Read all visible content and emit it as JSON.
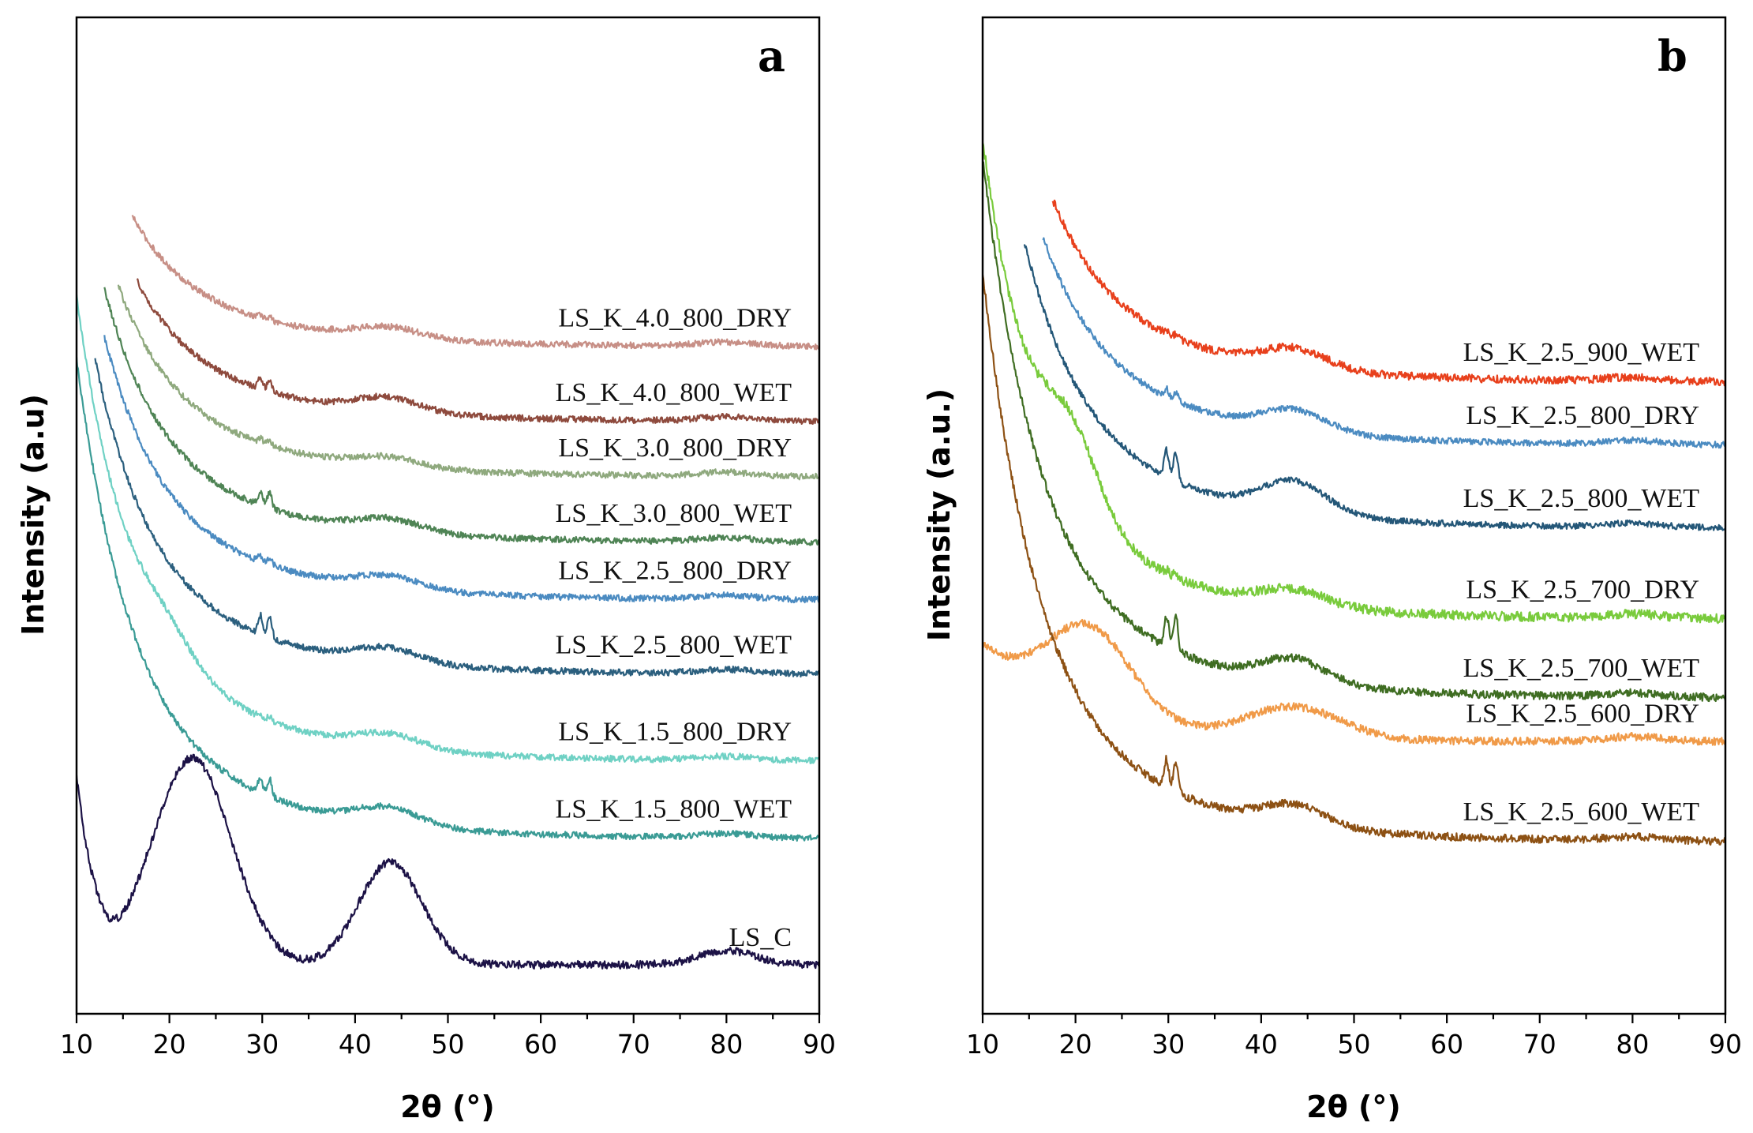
{
  "chart_data": [
    {
      "type": "line",
      "panel": "a",
      "xlabel": "2θ (°)",
      "ylabel": "Intensity (a.u)",
      "xlim": [
        10,
        90
      ],
      "xticks": [
        "10",
        "20",
        "30",
        "40",
        "50",
        "60",
        "70",
        "80",
        "90"
      ],
      "yticks": "none",
      "grid": false,
      "series": [
        {
          "name": "LS_K_4.0_800_DRY",
          "color": "#c78f86",
          "offset": 845,
          "scale": 1.0,
          "start_x": 16,
          "noise": 4,
          "bump22": 0,
          "hump43": 14,
          "sharp30": 4
        },
        {
          "name": "LS_K_4.0_800_WET",
          "color": "#8e4a3d",
          "offset": 750,
          "scale": 1.15,
          "start_x": 16.5,
          "noise": 4,
          "bump22": 0,
          "hump43": 18,
          "sharp30": 14
        },
        {
          "name": "LS_K_3.0_800_DRY",
          "color": "#8fa97e",
          "offset": 680,
          "scale": 1.2,
          "start_x": 14.5,
          "noise": 4,
          "bump22": 0,
          "hump43": 12,
          "sharp30": 6
        },
        {
          "name": "LS_K_3.0_800_WET",
          "color": "#4f8455",
          "offset": 597,
          "scale": 1.3,
          "start_x": 13,
          "noise": 4,
          "bump22": 0,
          "hump43": 16,
          "sharp30": 18
        },
        {
          "name": "LS_K_2.5_800_DRY",
          "color": "#4b8bc1",
          "offset": 524,
          "scale": 1.35,
          "start_x": 13,
          "noise": 4,
          "bump22": 0,
          "hump43": 16,
          "sharp30": 8
        },
        {
          "name": "LS_K_2.5_800_WET",
          "color": "#2b5f7e",
          "offset": 430,
          "scale": 1.4,
          "start_x": 12,
          "noise": 4,
          "bump22": 0,
          "hump43": 18,
          "sharp30": 24
        },
        {
          "name": "LS_K_1.5_800_DRY",
          "color": "#6fd1c4",
          "offset": 320,
          "scale": 1.55,
          "start_x": 10,
          "noise": 4,
          "bump22": 30,
          "hump43": 18,
          "sharp30": 4
        },
        {
          "name": "LS_K_1.5_800_WET",
          "color": "#3a9b95",
          "offset": 222,
          "scale": 1.6,
          "start_x": 10,
          "noise": 4,
          "bump22": 0,
          "hump43": 22,
          "sharp30": 20
        },
        {
          "name": "LS_C",
          "color": "#1c1246",
          "offset": 20,
          "scale": 0,
          "start_x": 10,
          "noise": 5,
          "profile": "carbon"
        }
      ]
    },
    {
      "type": "line",
      "panel": "b",
      "xlabel": "2θ (°)",
      "ylabel": "Intensity (a.u.)",
      "xlim": [
        10,
        90
      ],
      "xticks": [
        "10",
        "20",
        "30",
        "40",
        "50",
        "60",
        "70",
        "80",
        "90"
      ],
      "yticks": "none",
      "grid": false,
      "series": [
        {
          "name": "LS_K_2.5_900_WET",
          "color": "#e8401c",
          "offset": 800,
          "scale": 1.7,
          "start_x": 17.5,
          "noise": 5,
          "bump22": 0,
          "hump43": 24,
          "sharp30": 4
        },
        {
          "name": "LS_K_2.5_800_DRY",
          "color": "#4b8bc1",
          "offset": 720,
          "scale": 1.7,
          "start_x": 16.5,
          "noise": 4,
          "bump22": 0,
          "hump43": 26,
          "sharp30": 10
        },
        {
          "name": "LS_K_2.5_800_WET",
          "color": "#245778",
          "offset": 615,
          "scale": 1.8,
          "start_x": 14.5,
          "noise": 4,
          "bump22": 0,
          "hump43": 40,
          "sharp30": 34
        },
        {
          "name": "LS_K_2.5_700_DRY",
          "color": "#79cb3c",
          "offset": 500,
          "scale": 1.6,
          "start_x": 10,
          "noise": 6,
          "bump22": 90,
          "hump43": 20,
          "sharp30": 4
        },
        {
          "name": "LS_K_2.5_700_WET",
          "color": "#3f6d22",
          "offset": 400,
          "scale": 1.8,
          "start_x": 10,
          "noise": 5,
          "bump22": 0,
          "hump43": 30,
          "sharp30": 40
        },
        {
          "name": "LS_K_2.5_600_DRY",
          "color": "#f09a48",
          "offset": 305,
          "scale": 0,
          "start_x": 10,
          "noise": 5,
          "profile": "broad600"
        },
        {
          "name": "LS_K_2.5_600_WET",
          "color": "#8d5114",
          "offset": 218,
          "scale": 1.9,
          "start_x": 10,
          "noise": 5,
          "bump22": 0,
          "hump43": 26,
          "sharp30": 36
        }
      ]
    }
  ]
}
